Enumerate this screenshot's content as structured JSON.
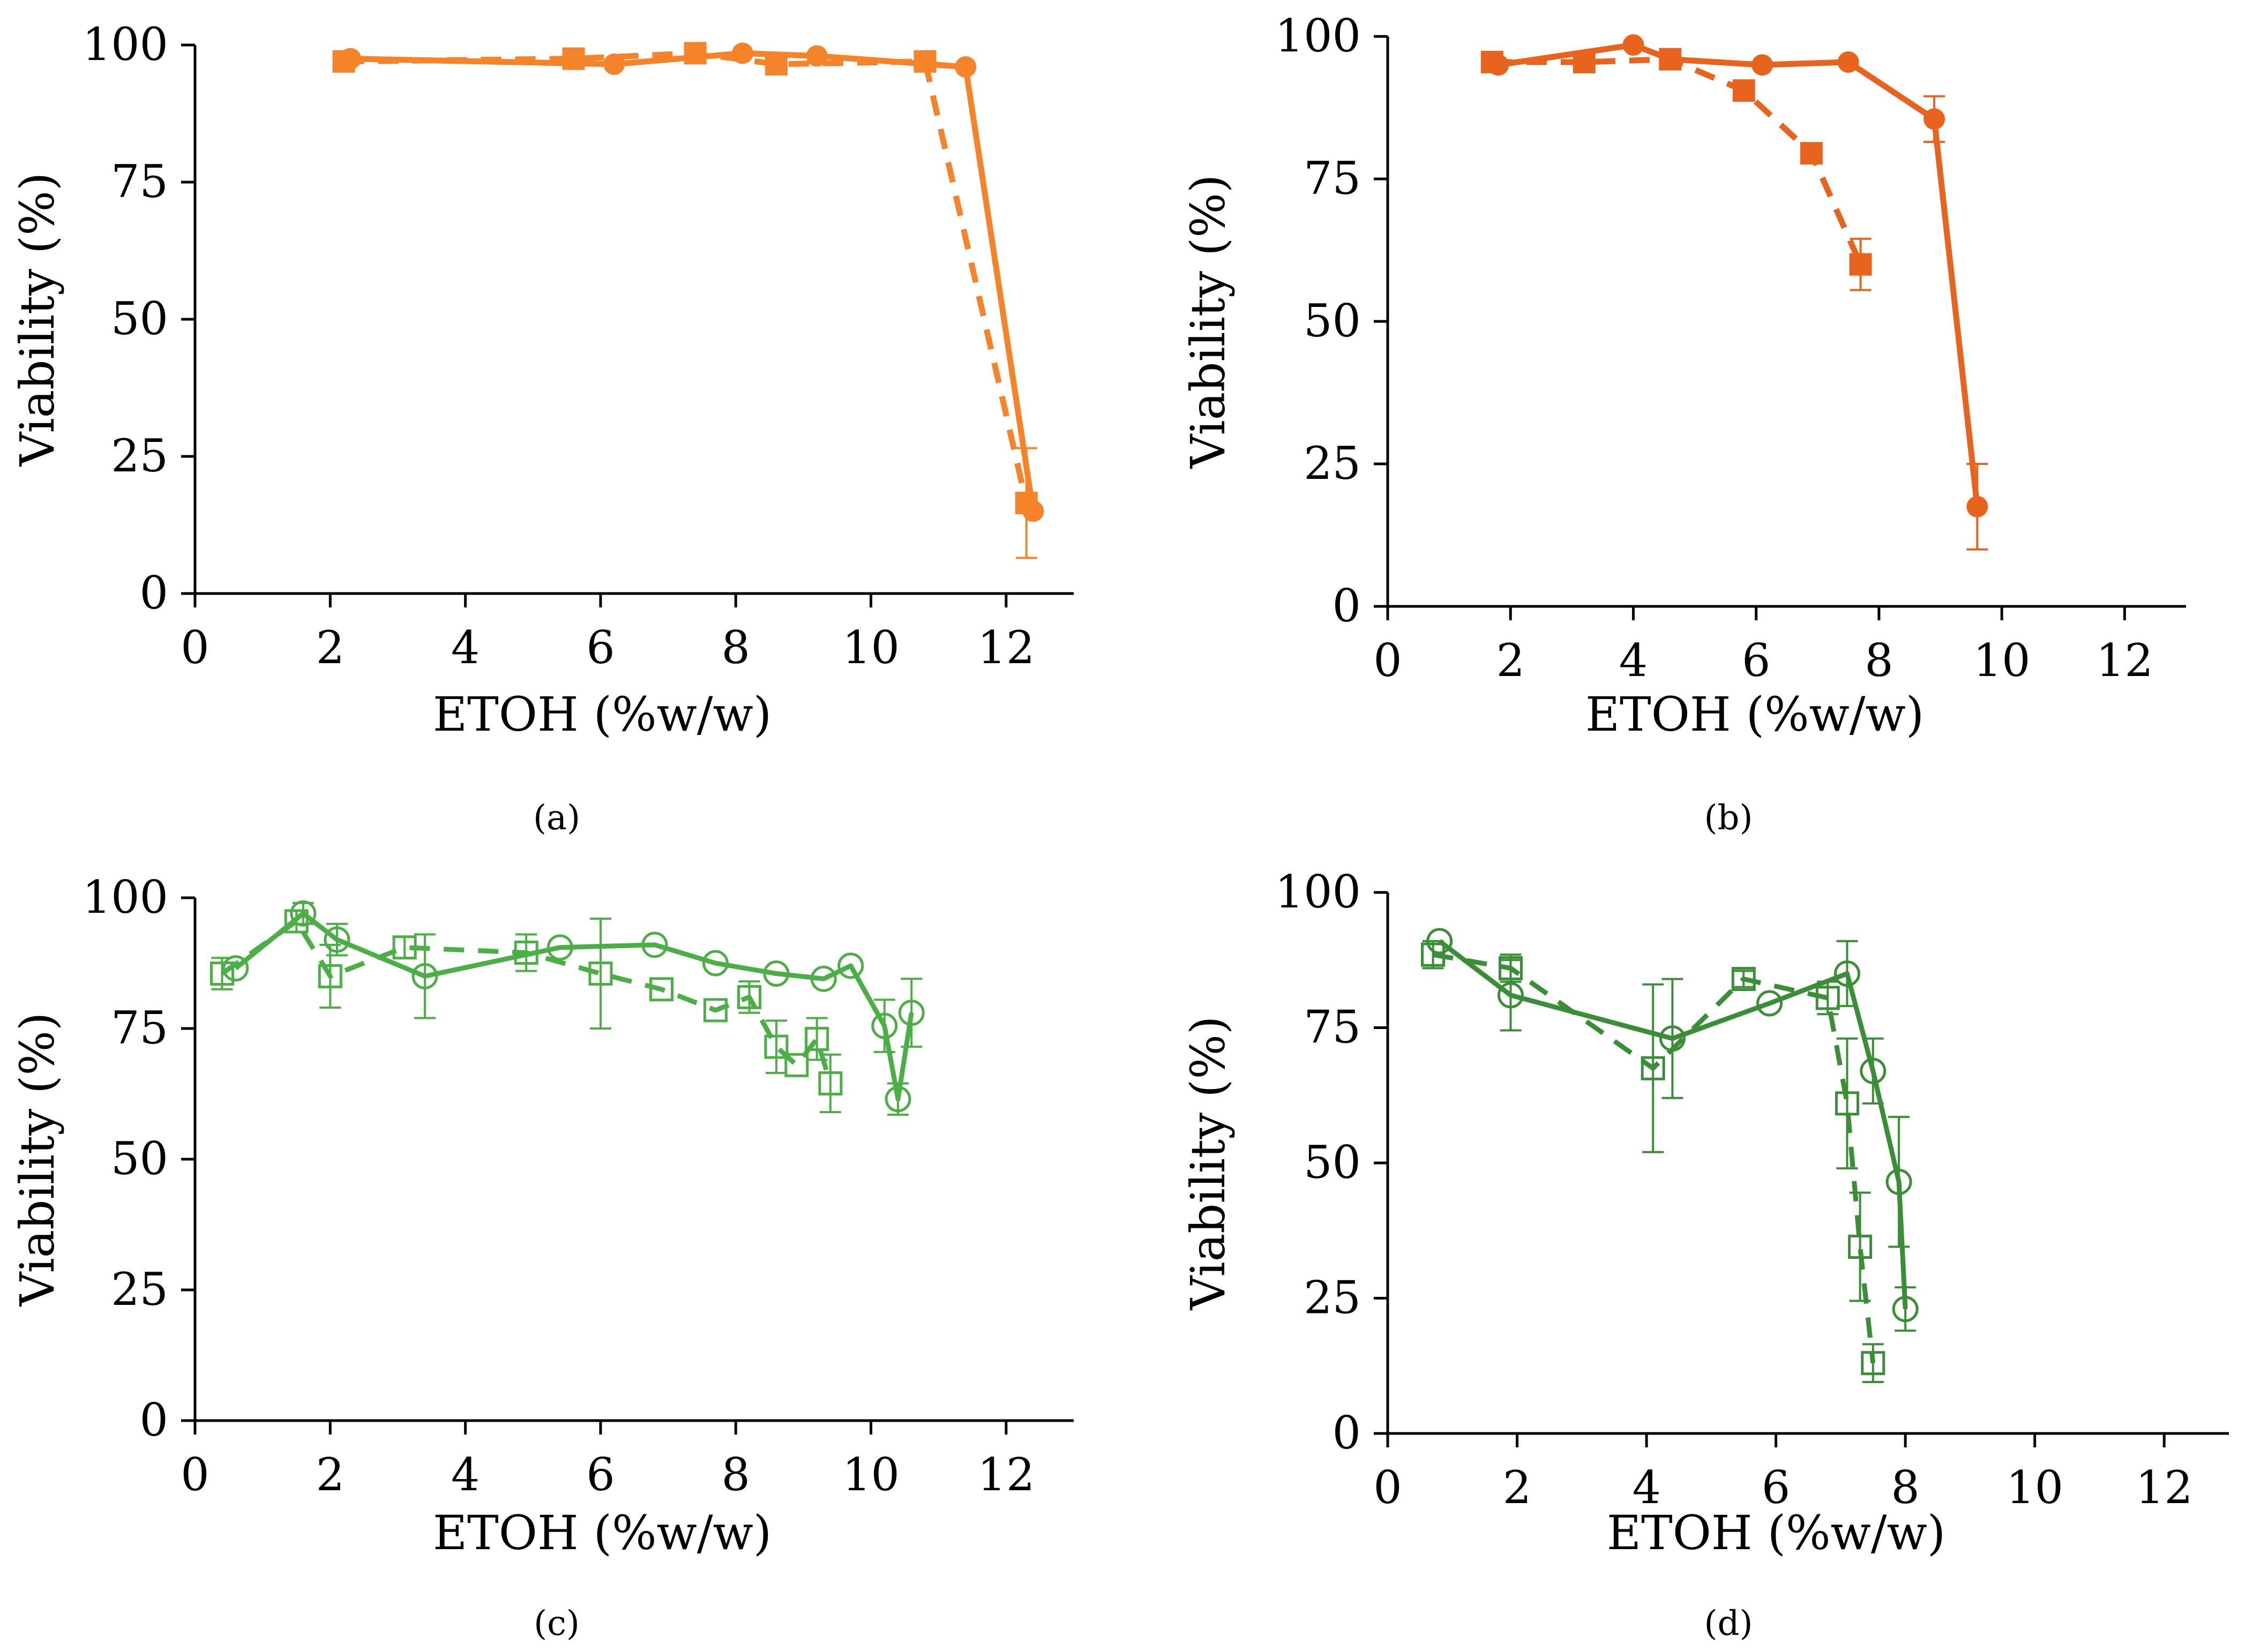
{
  "figure": {
    "captions": [
      "(a)",
      "(b)",
      "(c)",
      "(d)"
    ]
  },
  "chart_data": [
    {
      "type": "line",
      "panel": "a",
      "caption_letter": "a",
      "xlabel": "ETOH (%w/w)",
      "ylabel": "Viability (%)",
      "xlim": [
        0,
        13
      ],
      "ylim": [
        0,
        100
      ],
      "xticks": [
        0,
        2,
        4,
        6,
        8,
        10,
        12
      ],
      "yticks": [
        0,
        25,
        50,
        75,
        100
      ],
      "x_tick_labels": [
        "0",
        "2",
        "4",
        "6",
        "8",
        "10",
        "12"
      ],
      "y_tick_labels": [
        "0",
        "25",
        "50",
        "75",
        "100"
      ],
      "grid": false,
      "legend": "none",
      "color": "#F5832A",
      "series": [
        {
          "name": "circles-solid",
          "marker": "circle",
          "filled": true,
          "line": "solid",
          "x": [
            2.3,
            6.2,
            8.1,
            9.2,
            11.4,
            12.4
          ],
          "y": [
            97.5,
            96.5,
            98.5,
            98.0,
            96.0,
            15.0
          ],
          "err": [
            0,
            0,
            0,
            0,
            0,
            0
          ]
        },
        {
          "name": "squares-dashed",
          "marker": "square",
          "filled": true,
          "line": "dashed",
          "x": [
            2.2,
            5.6,
            7.4,
            8.6,
            10.8,
            12.3
          ],
          "y": [
            97.0,
            97.5,
            98.5,
            96.5,
            97.0,
            16.5
          ],
          "err": [
            0,
            0,
            0,
            0,
            0,
            10.0
          ]
        }
      ]
    },
    {
      "type": "line",
      "panel": "b",
      "caption_letter": "b",
      "xlabel": "ETOH (%w/w)",
      "ylabel": "Viability (%)",
      "xlim": [
        0,
        13
      ],
      "ylim": [
        0,
        100
      ],
      "xticks": [
        0,
        2,
        4,
        6,
        8,
        10,
        12
      ],
      "yticks": [
        0,
        25,
        50,
        75,
        100
      ],
      "x_tick_labels": [
        "0",
        "2",
        "4",
        "6",
        "8",
        "10",
        "12"
      ],
      "y_tick_labels": [
        "0",
        "25",
        "50",
        "75",
        "100"
      ],
      "grid": false,
      "legend": "none",
      "color": "#E8641E",
      "series": [
        {
          "name": "circles-solid",
          "marker": "circle",
          "filled": true,
          "line": "solid",
          "x": [
            1.8,
            4.0,
            4.6,
            6.1,
            7.5,
            8.9,
            9.6
          ],
          "y": [
            95.0,
            98.5,
            96.0,
            95.0,
            95.5,
            85.5,
            17.5
          ],
          "err": [
            0,
            0,
            0,
            0,
            0,
            4.0,
            7.5
          ]
        },
        {
          "name": "squares-dashed",
          "marker": "square",
          "filled": true,
          "line": "dashed",
          "x": [
            1.7,
            3.2,
            4.6,
            5.8,
            6.9,
            7.7
          ],
          "y": [
            95.5,
            95.5,
            96.0,
            90.5,
            79.5,
            60.0
          ],
          "err": [
            0,
            0,
            0,
            0,
            0,
            4.5
          ]
        }
      ]
    },
    {
      "type": "line",
      "panel": "c",
      "caption_letter": "c",
      "xlabel": "ETOH (%w/w)",
      "ylabel": "Viability (%)",
      "xlim": [
        0,
        13
      ],
      "ylim": [
        0,
        100
      ],
      "xticks": [
        0,
        2,
        4,
        6,
        8,
        10,
        12
      ],
      "yticks": [
        0,
        25,
        50,
        75,
        100
      ],
      "x_tick_labels": [
        "0",
        "2",
        "4",
        "6",
        "8",
        "10",
        "12"
      ],
      "y_tick_labels": [
        "0",
        "25",
        "50",
        "75",
        "100"
      ],
      "grid": false,
      "legend": "none",
      "color": "#4BAF45",
      "series": [
        {
          "name": "circles-solid",
          "marker": "circle",
          "filled": false,
          "line": "solid",
          "x": [
            0.6,
            1.6,
            2.1,
            3.4,
            5.4,
            6.8,
            7.7,
            8.6,
            9.3,
            9.7,
            10.2,
            10.4,
            10.6
          ],
          "y": [
            86.5,
            97.0,
            92.0,
            85.0,
            90.5,
            91.0,
            87.5,
            85.5,
            84.5,
            87.0,
            75.5,
            61.5,
            78.0
          ],
          "err": [
            0,
            2.0,
            3.0,
            8.0,
            0,
            0,
            0,
            0,
            0,
            0,
            5.0,
            3.0,
            6.5
          ]
        },
        {
          "name": "squares-dashed",
          "marker": "square",
          "filled": false,
          "line": "dashed",
          "x": [
            0.4,
            1.5,
            2.0,
            3.1,
            4.9,
            6.0,
            6.9,
            7.7,
            8.2,
            8.6,
            8.9,
            9.2,
            9.4
          ],
          "y": [
            85.5,
            95.5,
            85.0,
            90.5,
            89.5,
            85.5,
            82.5,
            78.5,
            81.0,
            71.5,
            68.0,
            73.0,
            64.5
          ],
          "err": [
            3.0,
            2.0,
            6.0,
            2.0,
            3.5,
            10.5,
            0,
            0,
            3.0,
            5.0,
            0,
            4.0,
            5.5
          ]
        }
      ]
    },
    {
      "type": "line",
      "panel": "d",
      "caption_letter": "d",
      "xlabel": "ETOH (%w/w)",
      "ylabel": "Viability (%)",
      "xlim": [
        0,
        13
      ],
      "ylim": [
        0,
        100
      ],
      "xticks": [
        0,
        2,
        4,
        6,
        8,
        10,
        12
      ],
      "yticks": [
        0,
        25,
        50,
        75,
        100
      ],
      "x_tick_labels": [
        "0",
        "2",
        "4",
        "6",
        "8",
        "10",
        "12"
      ],
      "y_tick_labels": [
        "0",
        "25",
        "50",
        "75",
        "100"
      ],
      "grid": false,
      "legend": "none",
      "color": "#3A8E36",
      "series": [
        {
          "name": "circles-solid",
          "marker": "circle",
          "filled": false,
          "line": "solid",
          "x": [
            0.8,
            1.9,
            4.4,
            5.9,
            7.1,
            7.5,
            7.9,
            8.0
          ],
          "y": [
            91.0,
            81.0,
            73.0,
            79.5,
            85.0,
            67.0,
            46.5,
            23.0
          ],
          "err": [
            0,
            6.5,
            11.0,
            0,
            6.0,
            6.0,
            12.0,
            4.0
          ]
        },
        {
          "name": "squares-dashed",
          "marker": "square",
          "filled": false,
          "line": "dashed",
          "x": [
            0.7,
            1.9,
            4.1,
            5.5,
            6.8,
            7.1,
            7.3,
            7.5
          ],
          "y": [
            88.5,
            86.0,
            67.5,
            84.0,
            80.5,
            61.0,
            34.5,
            13.0
          ],
          "err": [
            2.5,
            2.5,
            15.5,
            1.5,
            3.0,
            12.0,
            10.0,
            3.5
          ]
        }
      ]
    }
  ]
}
